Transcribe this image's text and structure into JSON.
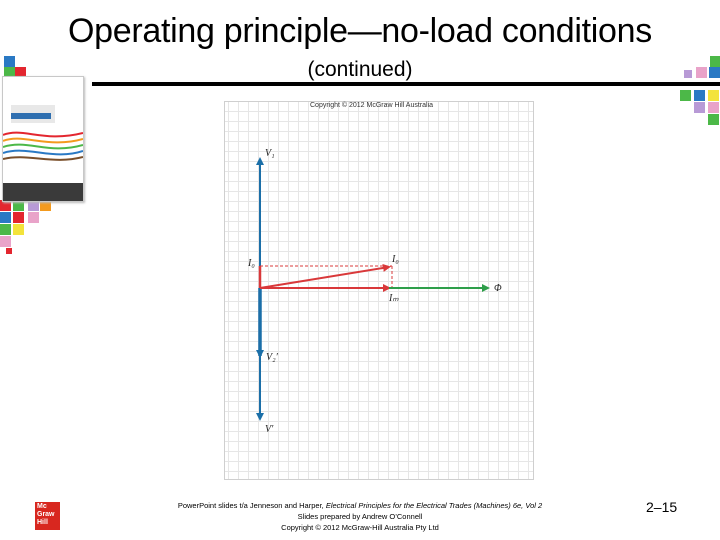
{
  "slide": {
    "title": "Operating principle—no-load conditions",
    "subtitle": "(continued)",
    "slide_number": "2–15"
  },
  "figure": {
    "copyright": "Copyright © 2012 McGraw Hill Australia",
    "labels": {
      "v1": "V₁",
      "i_phi": "I₀",
      "i0": "I₀",
      "im": "Iₘ",
      "phi": "Φ",
      "v2_prime": "V₂′",
      "v_prime": "V′"
    }
  },
  "footer": {
    "line1_prefix": "PowerPoint slides t/a Jenneson and Harper, ",
    "line1_book": "Electrical Principles for the Electrical Trades (Machines) 6e, Vol 2",
    "line2": "Slides prepared by Andrew O’Connell",
    "line3": "Copyright © 2012 McGraw-Hill Australia Pty Ltd"
  },
  "logo": {
    "line1": "Mc",
    "line2": "Graw",
    "line3": "Hill"
  },
  "colors": {
    "phasor_blue": "#1b6fa8",
    "phasor_red": "#d9383a",
    "phasor_green": "#2e9e4a",
    "tile_red": "#e3262f",
    "tile_orange": "#f39a1e",
    "tile_green": "#4cb848",
    "tile_blue": "#2a79c4",
    "tile_pink": "#e9a3c9",
    "tile_lavender": "#b89ad6",
    "tile_yellow": "#f3e33b",
    "tile_teal": "#3fb4b0"
  }
}
